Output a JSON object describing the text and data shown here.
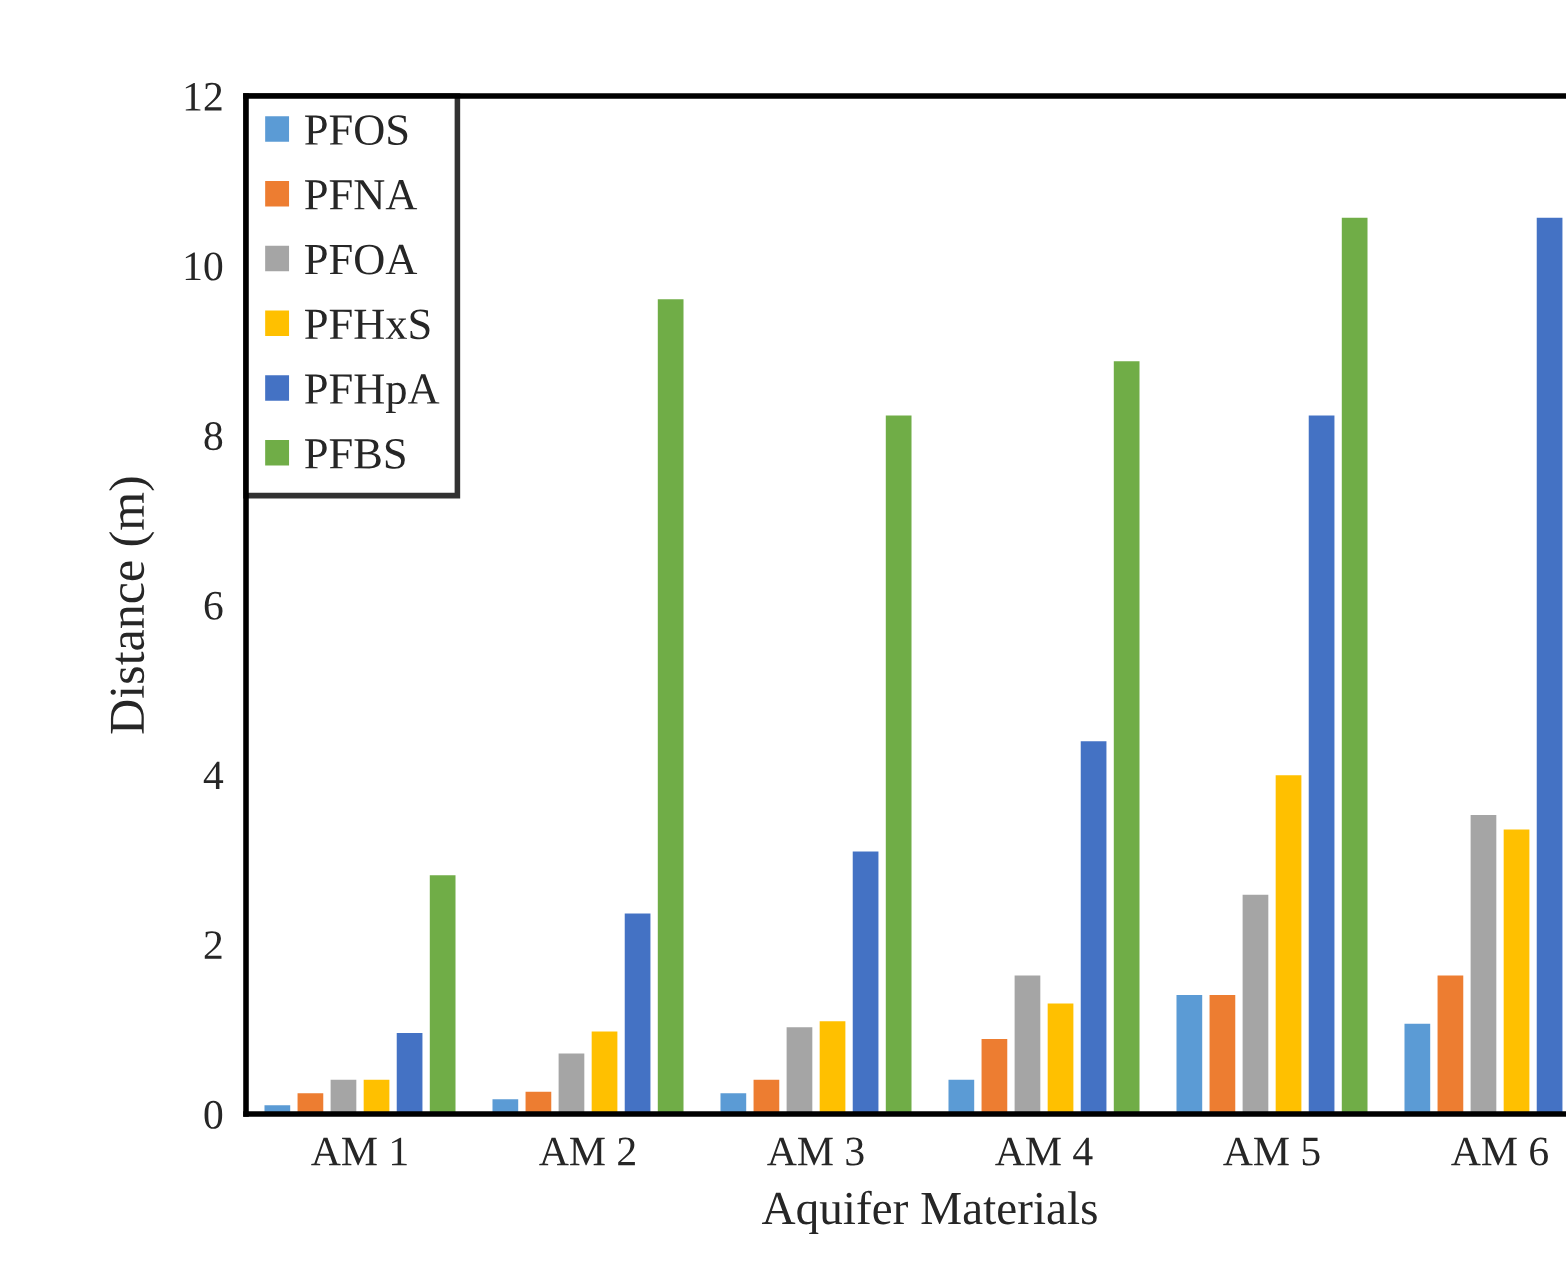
{
  "chart_data": {
    "type": "bar",
    "xlabel": "Aquifer Materials",
    "ylabel": "Distance (m)",
    "categories": [
      "AM 1",
      "AM 2",
      "AM 3",
      "AM 4",
      "AM 5",
      "AM 6"
    ],
    "series": [
      {
        "name": "PFOS",
        "color": "#5b9bd5",
        "values": [
          0.12,
          0.19,
          0.26,
          0.42,
          1.42,
          1.08
        ]
      },
      {
        "name": "PFNA",
        "color": "#ed7d31",
        "values": [
          0.26,
          0.28,
          0.42,
          0.9,
          1.42,
          1.65
        ]
      },
      {
        "name": "PFOA",
        "color": "#a5a5a5",
        "values": [
          0.42,
          0.73,
          1.04,
          1.65,
          2.6,
          3.54
        ]
      },
      {
        "name": "PFHxS",
        "color": "#ffc000",
        "values": [
          0.42,
          0.99,
          1.11,
          1.32,
          4.01,
          3.37
        ]
      },
      {
        "name": "PFHpA",
        "color": "#4472c4",
        "values": [
          0.97,
          2.38,
          3.11,
          4.41,
          8.25,
          10.58
        ]
      },
      {
        "name": "PFBS",
        "color": "#70ad47",
        "values": [
          2.83,
          9.62,
          8.25,
          8.89,
          10.58,
          null
        ]
      }
    ],
    "ylim": [
      0,
      12
    ],
    "yticks": [
      0,
      2,
      4,
      6,
      8,
      10,
      12
    ],
    "legend": "top left",
    "grid": false
  }
}
